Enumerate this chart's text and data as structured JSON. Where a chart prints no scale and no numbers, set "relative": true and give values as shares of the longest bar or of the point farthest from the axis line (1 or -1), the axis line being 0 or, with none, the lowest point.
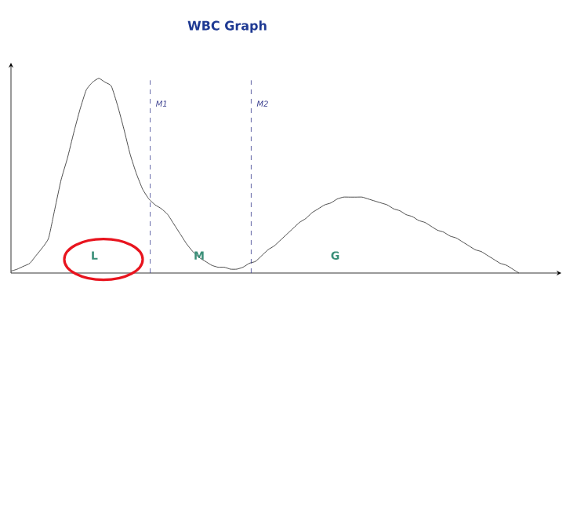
{
  "chart_data": {
    "type": "line",
    "title": "WBC Graph",
    "relative": true,
    "categories": [
      null,
      null,
      null,
      null,
      null,
      null,
      null,
      null,
      null,
      null,
      null,
      null,
      null,
      null,
      null,
      null,
      null,
      null,
      null,
      null,
      null,
      null,
      null,
      null,
      null,
      null,
      null,
      null,
      null,
      null,
      null,
      null,
      null,
      null,
      null,
      null,
      null,
      null,
      null,
      null,
      null,
      null,
      null,
      null,
      null,
      null,
      null,
      null,
      null,
      null,
      null,
      null,
      null,
      null,
      null,
      null,
      null,
      null,
      null,
      null,
      null,
      null,
      null,
      null,
      null,
      null,
      null,
      null,
      null,
      null,
      null,
      null,
      null,
      null,
      null,
      null,
      null,
      null,
      null,
      null,
      null,
      null
    ],
    "series": [
      {
        "color": "#222222",
        "values": [
          0.01,
          0.02,
          0.035,
          0.05,
          0.09,
          0.13,
          0.18,
          0.33,
          0.48,
          0.59,
          0.72,
          0.84,
          0.94,
          0.98,
          1.0,
          0.98,
          0.96,
          0.86,
          0.74,
          0.61,
          0.51,
          0.43,
          0.38,
          0.35,
          0.33,
          0.3,
          0.25,
          0.2,
          0.15,
          0.11,
          0.08,
          0.06,
          0.04,
          0.03,
          0.03,
          0.02,
          0.02,
          0.03,
          0.05,
          0.06,
          0.09,
          0.12,
          0.14,
          0.17,
          0.2,
          0.23,
          0.26,
          0.28,
          0.31,
          0.33,
          0.35,
          0.36,
          0.38,
          0.39,
          0.39,
          0.39,
          0.39,
          0.38,
          0.37,
          0.36,
          0.35,
          0.33,
          0.32,
          0.3,
          0.29,
          0.27,
          0.26,
          0.24,
          0.22,
          0.21,
          0.19,
          0.18,
          0.16,
          0.14,
          0.12,
          0.11,
          0.09,
          0.07,
          0.05,
          0.04,
          0.02,
          0
        ]
      }
    ],
    "annotations": [
      "M1",
      "M2",
      "L",
      "M",
      "G"
    ],
    "marker": "none",
    "line_style": "solid"
  }
}
